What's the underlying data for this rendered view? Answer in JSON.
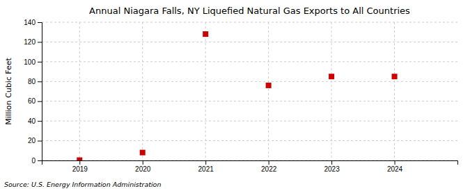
{
  "chart_data": {
    "type": "scatter",
    "title": "Annual Niagara Falls, NY Liquefied Natural Gas Exports to All Countries",
    "y_label": "Million Cubic Feet",
    "annotations": [
      "Source: U.S. Energy Information Administration"
    ],
    "x": [
      2019,
      2020,
      2021,
      2022,
      2023,
      2024
    ],
    "values": [
      0.3,
      8.0,
      128.0,
      76.0,
      85.0,
      85.0
    ],
    "color": "#cc0000",
    "marker": "square",
    "xlim": [
      2018.4,
      2025.0
    ],
    "ylim": [
      0,
      140
    ],
    "xticks": [
      2019,
      2020,
      2021,
      2022,
      2023,
      2024
    ],
    "yticks": [
      0,
      20,
      40,
      60,
      80,
      100,
      120,
      140
    ],
    "grid": true
  }
}
